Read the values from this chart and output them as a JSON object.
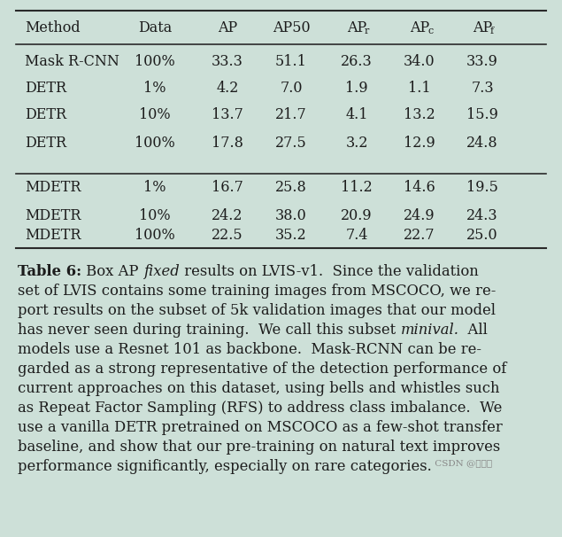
{
  "background_color": "#cde0d8",
  "rows_group1": [
    [
      "Mask R-CNN",
      "100%",
      "33.3",
      "51.1",
      "26.3",
      "34.0",
      "33.9"
    ],
    [
      "DETR",
      "1%",
      "4.2",
      "7.0",
      "1.9",
      "1.1",
      "7.3"
    ],
    [
      "DETR",
      "10%",
      "13.7",
      "21.7",
      "4.1",
      "13.2",
      "15.9"
    ],
    [
      "DETR",
      "100%",
      "17.8",
      "27.5",
      "3.2",
      "12.9",
      "24.8"
    ]
  ],
  "rows_group2": [
    [
      "MDETR",
      "1%",
      "16.7",
      "25.8",
      "11.2",
      "14.6",
      "19.5"
    ],
    [
      "MDETR",
      "10%",
      "24.2",
      "38.0",
      "20.9",
      "24.9",
      "24.3"
    ],
    [
      "MDETR",
      "100%",
      "22.5",
      "35.2",
      "7.4",
      "22.7",
      "25.0"
    ]
  ],
  "text_color": "#1c1c1c",
  "line_color": "#2a2a2a",
  "watermark": "CSDN @个荆尘",
  "font_size_table": 11.5,
  "font_size_caption": 11.8
}
